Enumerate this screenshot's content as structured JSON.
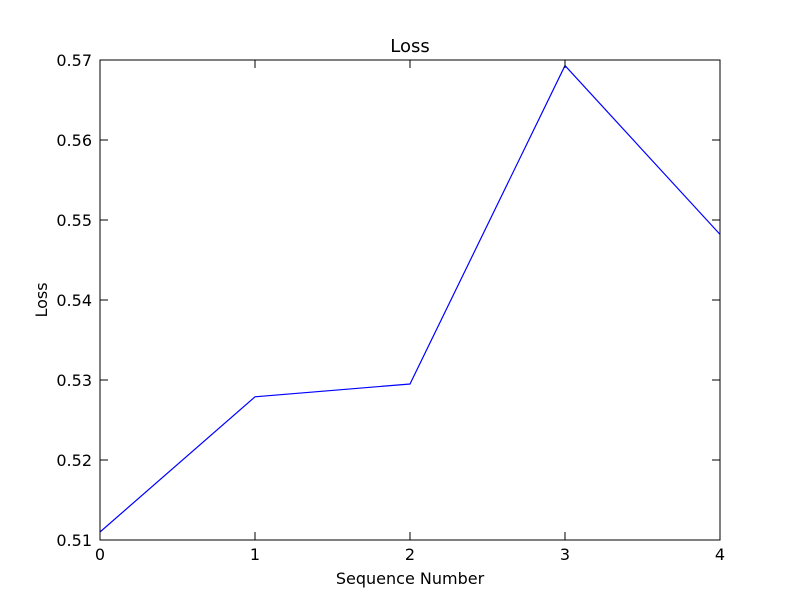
{
  "chart_data": {
    "type": "line",
    "title": "Loss",
    "xlabel": "Sequence Number",
    "ylabel": "Loss",
    "x": [
      0,
      1,
      2,
      3,
      4
    ],
    "xlim": [
      0,
      4
    ],
    "ylim": [
      0.51,
      0.57
    ],
    "xticks": [
      "0",
      "1",
      "2",
      "3",
      "4"
    ],
    "yticks": [
      "0.51",
      "0.52",
      "0.53",
      "0.54",
      "0.55",
      "0.56",
      "0.57"
    ],
    "grid": false,
    "series": [
      {
        "values": [
          0.511,
          0.5279,
          0.5295,
          0.5693,
          0.5482
        ],
        "color": "#0000ff"
      }
    ]
  }
}
